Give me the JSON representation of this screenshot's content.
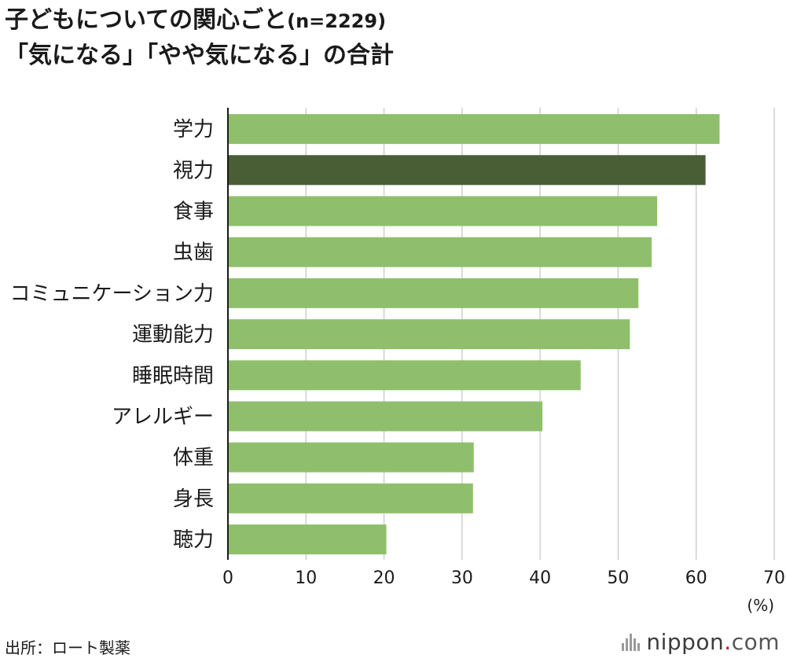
{
  "title": {
    "line1": "子どもについての関心ごと",
    "n": "(n=2229)",
    "line2": "「気になる」「やや気になる」の合計"
  },
  "source": "出所：ロート製薬",
  "logo": {
    "name": "nippon",
    "dot": ".",
    "tld": "com"
  },
  "chart_data": {
    "type": "bar",
    "orientation": "horizontal",
    "categories": [
      "学力",
      "視力",
      "食事",
      "虫歯",
      "コミュニケーション力",
      "運動能力",
      "睡眠時間",
      "アレルギー",
      "体重",
      "身長",
      "聴力"
    ],
    "values": [
      63.0,
      61.2,
      55.0,
      54.3,
      52.6,
      51.5,
      45.2,
      40.3,
      31.5,
      31.4,
      20.3
    ],
    "highlight_index": 1,
    "xlim": [
      0,
      70
    ],
    "xticks": [
      0,
      10,
      20,
      30,
      40,
      50,
      60,
      70
    ],
    "unit": "(%)",
    "grid": true,
    "colors": {
      "bar": "#8fbf6c",
      "highlight": "#4a5e35",
      "grid": "#cfcfcf",
      "axis": "#1a1a1a"
    }
  }
}
